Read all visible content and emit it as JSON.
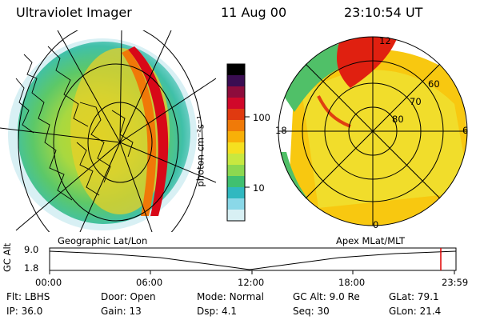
{
  "header": {
    "title": "Ultraviolet Imager",
    "date": "11 Aug 00",
    "time": "23:10:54 UT"
  },
  "colorbar": {
    "label": "photon cm⁻²s⁻¹",
    "ticks": [
      "100",
      "10"
    ],
    "colors": [
      "#000000",
      "#3a0d52",
      "#8d0c3c",
      "#d0082a",
      "#e03a10",
      "#f07a08",
      "#f8b008",
      "#f5e020",
      "#c8e840",
      "#8cd850",
      "#40c070",
      "#30b8c0",
      "#8ad8e8",
      "#d8f0f4"
    ]
  },
  "left_panel": {
    "caption": "Geographic Lat/Lon"
  },
  "right_panel": {
    "caption": "Apex MLat/MLT",
    "lat_labels": [
      "60",
      "70",
      "80"
    ],
    "mlt_labels": [
      "12",
      "18",
      "6",
      "0"
    ]
  },
  "timeline": {
    "axis_label": "GC Alt",
    "y_labels": [
      "9.0",
      "1.8"
    ],
    "time_labels": [
      "00:00",
      "06:00",
      "12:00",
      "18:00",
      "23:59"
    ],
    "marker_color": "#e00000"
  },
  "info": {
    "flt_label": "Flt:",
    "flt_value": "LBHS",
    "ip_label": "IP:",
    "ip_value": "36.0",
    "door_label": "Door:",
    "door_value": "Open",
    "gain_label": "Gain:",
    "gain_value": "13",
    "mode_label": "Mode:",
    "mode_value": "Normal",
    "dsp_label": "Dsp:",
    "dsp_value": "4.1",
    "gcalt_label": "GC Alt:",
    "gcalt_value": "9.0 Re",
    "seq_label": "Seq:",
    "seq_value": "30",
    "glat_label": "GLat:",
    "glat_value": "79.1",
    "glon_label": "GLon:",
    "glon_value": "21.4"
  }
}
